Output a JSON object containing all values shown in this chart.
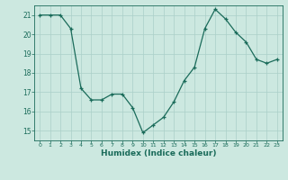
{
  "x": [
    0,
    1,
    2,
    3,
    4,
    5,
    6,
    7,
    8,
    9,
    10,
    11,
    12,
    13,
    14,
    15,
    16,
    17,
    18,
    19,
    20,
    21,
    22,
    23
  ],
  "y": [
    21.0,
    21.0,
    21.0,
    20.3,
    17.2,
    16.6,
    16.6,
    16.9,
    16.9,
    16.2,
    14.9,
    15.3,
    15.7,
    16.5,
    17.6,
    18.3,
    20.3,
    21.3,
    20.8,
    20.1,
    19.6,
    18.7,
    18.5,
    18.7
  ],
  "xlabel": "Humidex (Indice chaleur)",
  "xlim": [
    -0.5,
    23.5
  ],
  "ylim": [
    14.5,
    21.5
  ],
  "yticks": [
    15,
    16,
    17,
    18,
    19,
    20,
    21
  ],
  "xticks": [
    0,
    1,
    2,
    3,
    4,
    5,
    6,
    7,
    8,
    9,
    10,
    11,
    12,
    13,
    14,
    15,
    16,
    17,
    18,
    19,
    20,
    21,
    22,
    23
  ],
  "line_color": "#1a6b5a",
  "marker_color": "#1a6b5a",
  "bg_color": "#cce8e0",
  "grid_color": "#aacfc8",
  "axis_color": "#1a6b5a",
  "text_color": "#1a6b5a"
}
